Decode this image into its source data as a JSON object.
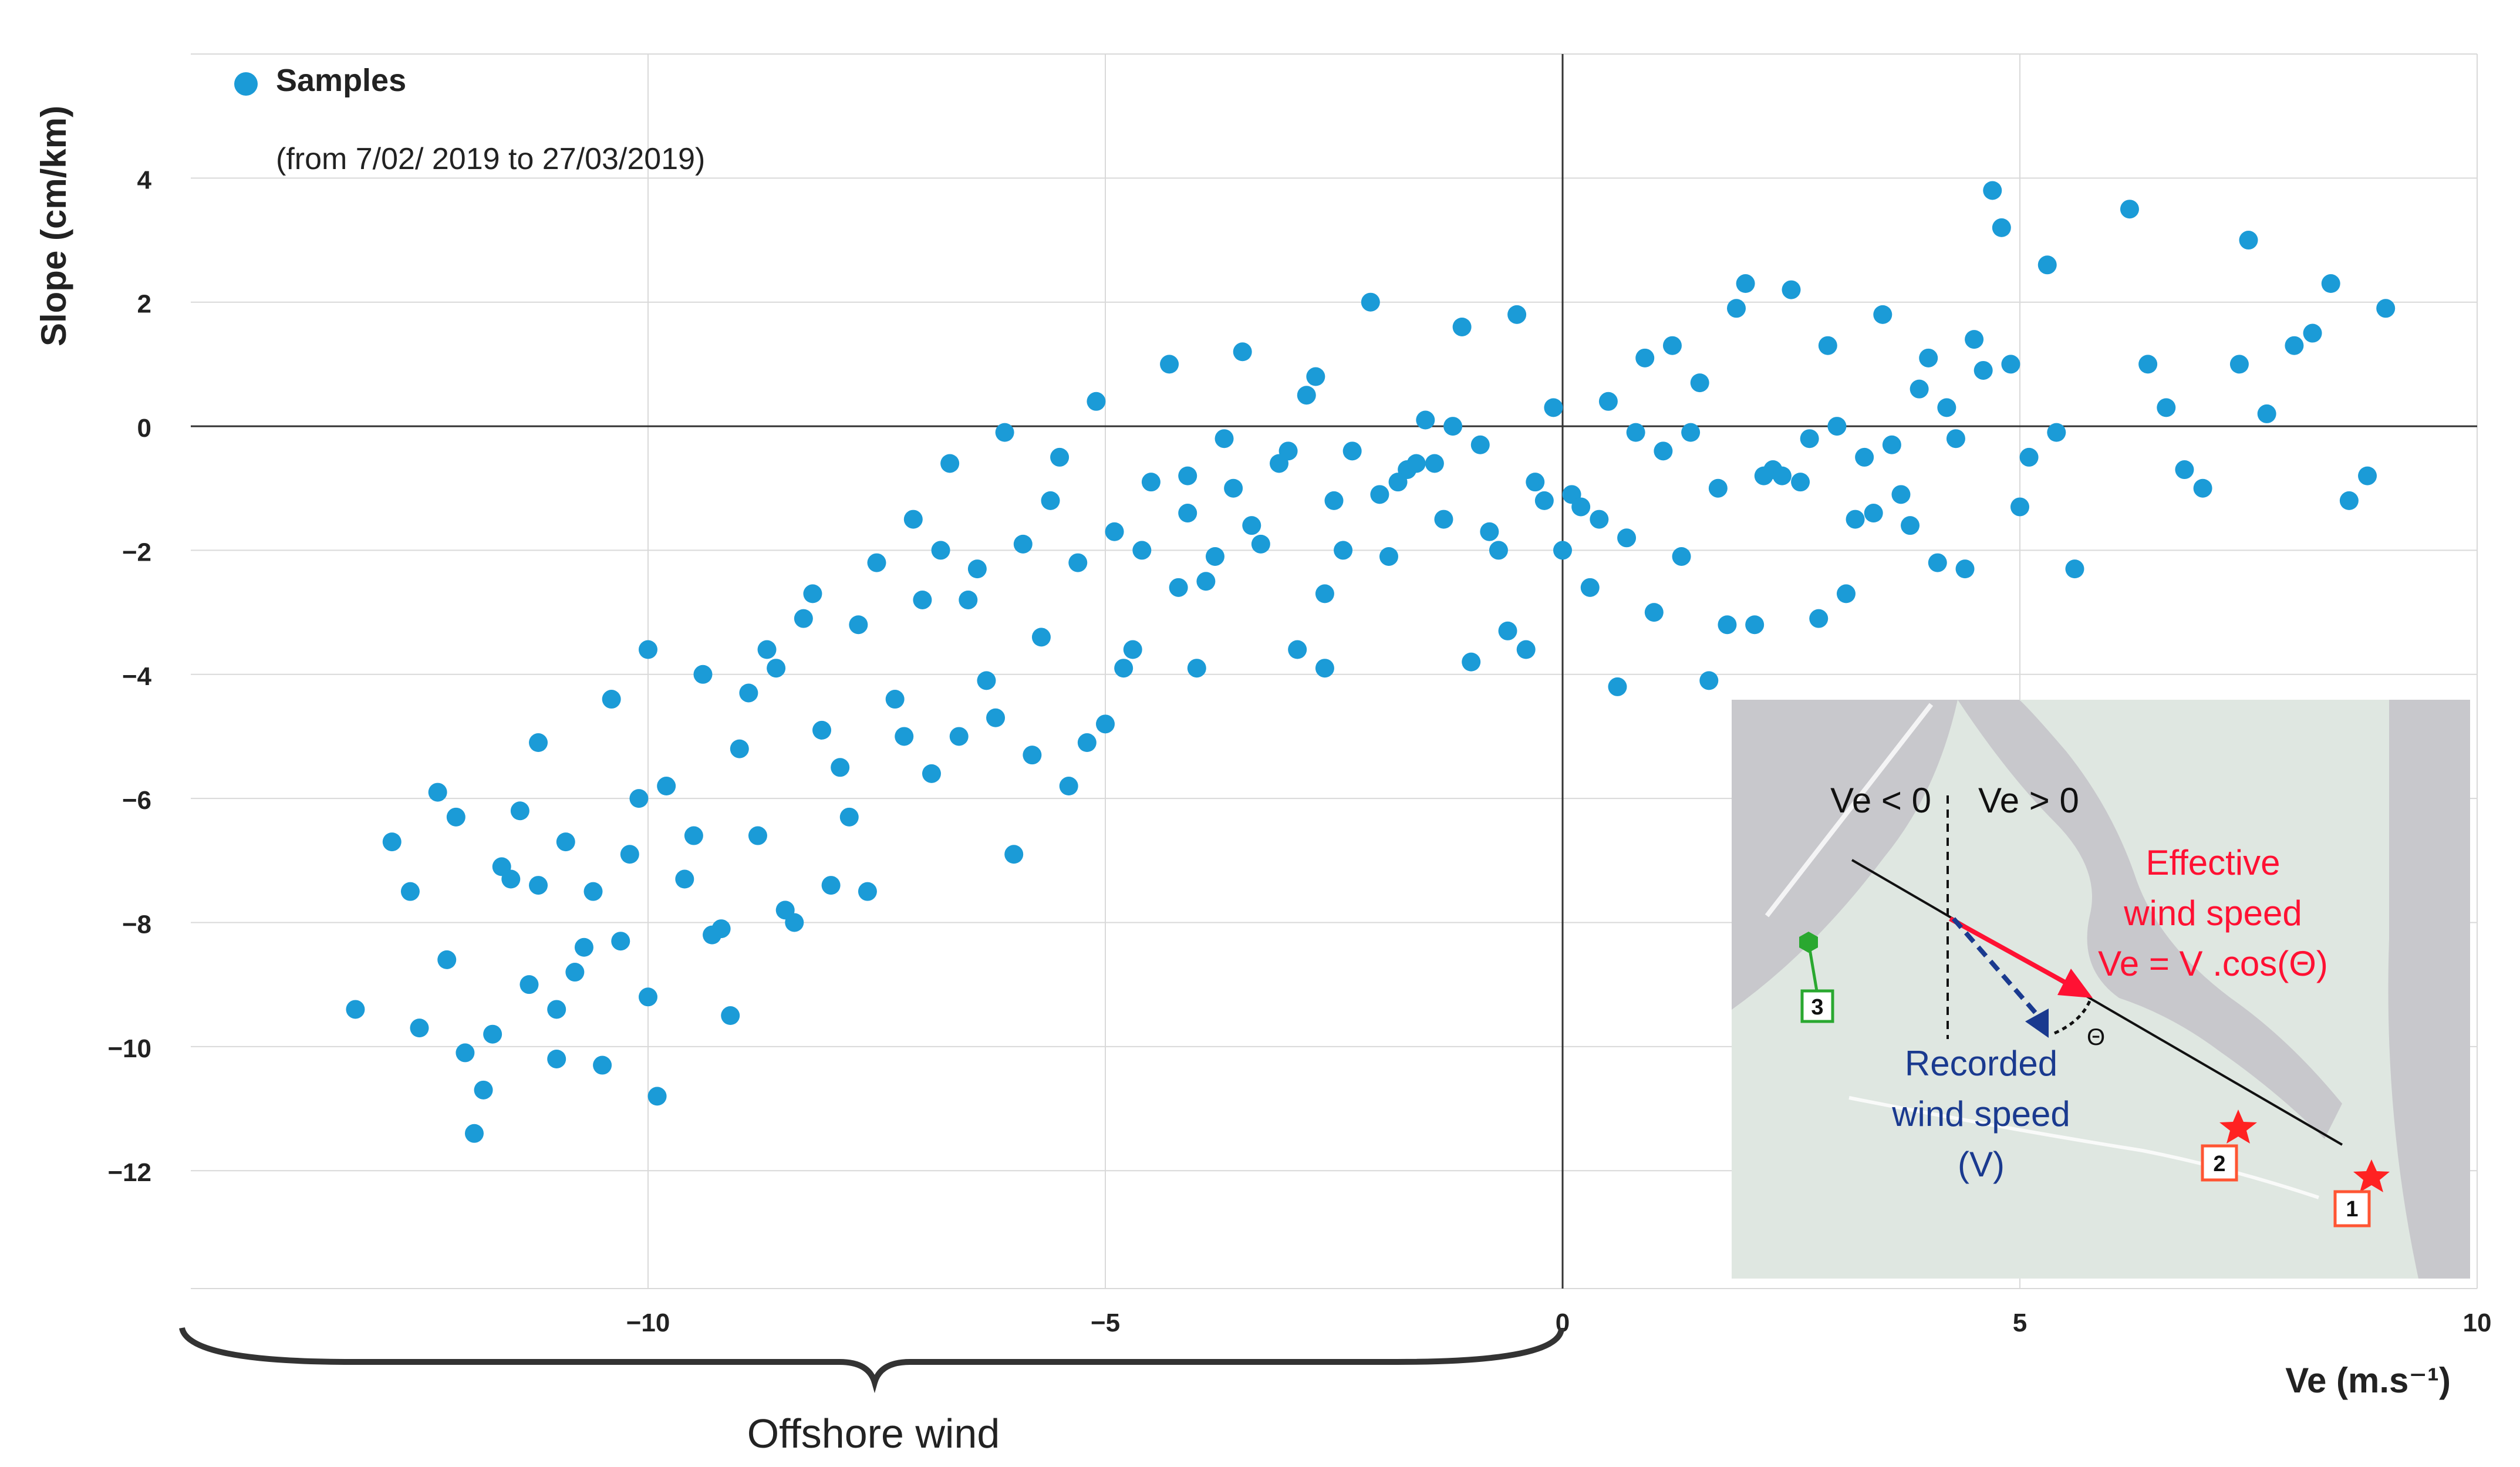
{
  "chart_data": {
    "type": "scatter",
    "xlabel": "Ve (m.s⁻¹)",
    "ylabel": "Slope (cm/km)",
    "xlim": [
      -15,
      10
    ],
    "ylim": [
      -13.9,
      6
    ],
    "x_ticks": [
      -10,
      -5,
      0,
      5,
      10
    ],
    "x_tick_labels": [
      "−10",
      "−5",
      "0",
      "5",
      "10"
    ],
    "y_ticks": [
      4,
      2,
      0,
      -2,
      -4,
      -6,
      -8,
      -10,
      -12
    ],
    "y_tick_labels": [
      "4",
      "2",
      "0",
      "−2",
      "−4",
      "−6",
      "−8",
      "−10",
      "−12"
    ],
    "grid": true,
    "legend": {
      "label": "Samples",
      "subtitle": "(from 7/02/ 2019 to 27/03/2019)",
      "position": "top-left"
    },
    "bracket_label": "Offshore wind",
    "point_color": "#1b9bd7",
    "series": [
      {
        "name": "Samples",
        "x": [
          -13.2,
          -12.8,
          -12.5,
          -12.3,
          -12.2,
          -12.0,
          -11.9,
          -11.7,
          -11.6,
          -11.4,
          -11.3,
          -11.2,
          -11.0,
          -10.9,
          -10.7,
          -10.6,
          -10.4,
          -10.2,
          -10.0,
          -9.8,
          -9.6,
          -9.4,
          -9.2,
          -9.0,
          -8.8,
          -8.6,
          -8.5,
          -8.3,
          -8.1,
          -7.9,
          -7.7,
          -7.5,
          -7.3,
          -7.1,
          -6.9,
          -6.7,
          -6.5,
          -6.3,
          -6.1,
          -5.9,
          -5.7,
          -5.5,
          -5.3,
          -5.1,
          -4.9,
          -4.7,
          -4.5,
          -4.3,
          -4.1,
          -3.9,
          -3.7,
          -3.5,
          -3.3,
          -3.1,
          -2.9,
          -2.7,
          -2.5,
          -2.3,
          -2.1,
          -1.9,
          -1.7,
          -1.5,
          -1.3,
          -1.1,
          -0.9,
          -0.7,
          -0.5,
          -0.3,
          -0.1,
          0.1,
          0.3,
          0.5,
          0.7,
          0.9,
          1.1,
          1.3,
          1.5,
          1.7,
          1.9,
          2.1,
          2.3,
          2.5,
          2.7,
          2.9,
          3.1,
          3.3,
          3.5,
          3.7,
          3.9,
          4.1,
          4.3,
          4.5,
          4.7,
          4.9,
          5.1,
          5.3,
          5.6,
          6.2,
          6.6,
          7.0,
          7.5,
          8.0,
          8.4,
          8.8,
          9.0,
          -11.5,
          -10.8,
          -10.1,
          -9.3,
          -8.7,
          -7.8,
          -7.0,
          -6.2,
          -5.6,
          -4.8,
          -4.1,
          -3.4,
          -2.6,
          -1.8,
          -1.0,
          -0.2,
          0.6,
          1.4,
          2.2,
          3.0,
          3.8,
          4.6,
          -11.0,
          -9.9,
          -8.9,
          -7.6,
          -6.4,
          -5.2,
          -4.0,
          -2.8,
          -1.6,
          -0.4,
          0.8,
          2.0,
          3.2,
          4.4,
          5.4,
          6.8,
          7.7,
          8.6,
          -12.1,
          -10.3,
          -9.1,
          -8.0,
          -6.8,
          -5.8,
          -4.6,
          -3.6,
          -2.4,
          -1.2,
          0.0,
          1.2,
          2.4,
          3.6,
          4.8,
          -11.8,
          -10.5,
          -9.5,
          -8.4,
          -7.2,
          -6.0,
          -5.0,
          -3.8,
          -2.6,
          -1.4,
          -0.6,
          0.4,
          1.6,
          2.8,
          4.0,
          5.0,
          6.4,
          7.4,
          8.2,
          -12.6,
          -11.2,
          -10.0,
          -8.2,
          -6.6,
          -5.4,
          -4.2,
          -3.0,
          -2.0,
          -0.8,
          0.2,
          1.0,
          1.8,
          2.6,
          3.4,
          4.2
        ],
        "y": [
          -9.4,
          -6.7,
          -9.7,
          -5.9,
          -8.6,
          -10.1,
          -11.4,
          -9.8,
          -7.1,
          -6.2,
          -9.0,
          -5.1,
          -10.2,
          -6.7,
          -8.4,
          -7.5,
          -4.4,
          -6.9,
          -9.2,
          -5.8,
          -7.3,
          -4.0,
          -8.1,
          -5.2,
          -6.6,
          -3.9,
          -7.8,
          -3.1,
          -4.9,
          -5.5,
          -3.2,
          -2.2,
          -4.4,
          -1.5,
          -5.6,
          -0.6,
          -2.8,
          -4.1,
          -0.1,
          -1.9,
          -3.4,
          -0.5,
          -2.2,
          0.4,
          -1.7,
          -3.6,
          -0.9,
          1.0,
          -1.4,
          -2.5,
          -0.2,
          1.2,
          -1.9,
          -0.6,
          -3.6,
          0.8,
          -1.2,
          -0.4,
          2.0,
          -2.1,
          -0.7,
          0.1,
          -1.5,
          1.6,
          -0.3,
          -2.0,
          1.8,
          -0.9,
          0.3,
          -1.1,
          -2.6,
          0.4,
          -1.8,
          1.1,
          -0.4,
          -2.1,
          0.7,
          -1.0,
          1.9,
          -3.2,
          -0.7,
          2.2,
          -0.2,
          1.3,
          -2.7,
          -0.5,
          1.8,
          -1.1,
          0.6,
          -2.2,
          -0.2,
          1.4,
          3.8,
          1.0,
          -0.5,
          2.6,
          -2.3,
          3.5,
          0.3,
          -1.0,
          3.0,
          1.3,
          2.3,
          -0.8,
          1.9,
          -7.3,
          -8.8,
          -6.0,
          -8.2,
          -3.6,
          -6.3,
          -2.8,
          -4.7,
          -1.2,
          -3.9,
          -0.8,
          -1.6,
          -3.9,
          -0.9,
          -3.8,
          -1.2,
          -4.2,
          -0.1,
          -0.8,
          0.0,
          -1.6,
          0.9,
          -9.4,
          -10.8,
          -4.3,
          -7.5,
          -2.3,
          -5.1,
          -3.9,
          0.5,
          -0.6,
          -3.6,
          -0.1,
          2.3,
          -1.5,
          -2.3,
          -0.1,
          -0.7,
          0.2,
          -1.2,
          -6.3,
          -8.3,
          -9.5,
          -7.4,
          -2.0,
          -5.3,
          -2.0,
          -1.0,
          -2.0,
          0.0,
          -2.0,
          1.3,
          -0.8,
          -0.3,
          3.2,
          -10.7,
          -10.3,
          -6.6,
          -8.0,
          -5.0,
          -6.9,
          -4.8,
          -2.1,
          -2.7,
          -0.6,
          -3.3,
          -1.5,
          -4.1,
          -3.1,
          1.1,
          -1.3,
          1.0,
          1.0,
          1.5,
          -7.5,
          -7.4,
          -3.6,
          -2.7,
          -5.0,
          -5.8,
          -2.6,
          -0.4,
          -1.1,
          -1.7,
          -1.3,
          -3.0,
          -3.2,
          -0.9,
          -1.4,
          0.3
        ]
      }
    ]
  },
  "inset": {
    "label_ve_neg": "Ve < 0",
    "label_ve_pos": "Ve > 0",
    "effective_line1": "Effective",
    "effective_line2": "wind speed",
    "effective_formula": "Ve = V .cos(Θ)",
    "recorded_line1": "Recorded",
    "recorded_line2": "wind speed",
    "recorded_line3": "(V)",
    "theta": "Θ",
    "marker1": "1",
    "marker2": "2",
    "marker3": "3",
    "colors": {
      "effective": "#ff1133",
      "recorded": "#1a3a8f",
      "marker3": "#2aa830",
      "markers12": "#ff2222"
    }
  }
}
